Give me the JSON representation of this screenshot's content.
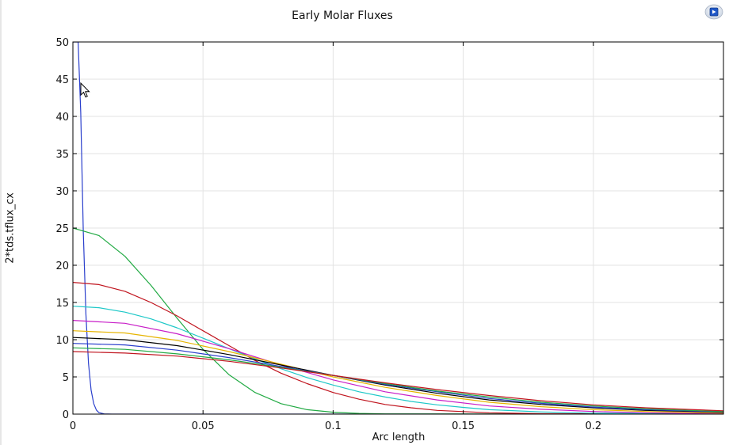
{
  "chart_data": {
    "type": "line",
    "title": "Early Molar Fluxes",
    "xlabel": "Arc length",
    "ylabel": "2*tds.tflux_cx",
    "xlim": [
      0,
      0.25
    ],
    "ylim": [
      0,
      50
    ],
    "xticks": [
      0,
      0.05,
      0.1,
      0.15,
      0.2
    ],
    "xtick_labels": [
      "0",
      "0.05",
      "0.1",
      "0.15",
      "0.2"
    ],
    "yticks": [
      0,
      5,
      10,
      15,
      20,
      25,
      30,
      35,
      40,
      45,
      50
    ],
    "ytick_labels": [
      "0",
      "5",
      "10",
      "15",
      "20",
      "25",
      "30",
      "35",
      "40",
      "45",
      "50"
    ],
    "grid": true,
    "legend": "none",
    "series": [
      {
        "color": "#2a3fcc",
        "x": [
          0,
          0.001,
          0.002,
          0.003,
          0.004,
          0.005,
          0.006,
          0.007,
          0.008,
          0.009,
          0.01,
          0.012,
          0.015,
          0.25
        ],
        "y": [
          50,
          50,
          50,
          40.5,
          24.6,
          13.5,
          6.8,
          3.2,
          1.4,
          0.55,
          0.2,
          0.03,
          0,
          0
        ]
      },
      {
        "color": "#22aa44",
        "x": [
          0,
          0.01,
          0.02,
          0.03,
          0.04,
          0.05,
          0.06,
          0.07,
          0.08,
          0.09,
          0.1,
          0.11,
          0.12,
          0.25
        ],
        "y": [
          25,
          24.0,
          21.2,
          17.3,
          12.9,
          8.7,
          5.3,
          2.9,
          1.4,
          0.6,
          0.25,
          0.1,
          0.03,
          0
        ]
      },
      {
        "color": "#c0141e",
        "x": [
          0,
          0.01,
          0.02,
          0.03,
          0.04,
          0.05,
          0.06,
          0.07,
          0.08,
          0.09,
          0.1,
          0.11,
          0.12,
          0.13,
          0.14,
          0.16,
          0.18,
          0.25
        ],
        "y": [
          17.7,
          17.4,
          16.5,
          15.0,
          13.2,
          11.2,
          9.2,
          7.2,
          5.5,
          4.1,
          2.9,
          2.0,
          1.3,
          0.85,
          0.5,
          0.18,
          0.05,
          0
        ]
      },
      {
        "color": "#1ec8c8",
        "x": [
          0,
          0.01,
          0.02,
          0.03,
          0.04,
          0.05,
          0.06,
          0.07,
          0.08,
          0.09,
          0.1,
          0.11,
          0.12,
          0.13,
          0.14,
          0.15,
          0.16,
          0.18,
          0.2,
          0.25
        ],
        "y": [
          14.5,
          14.3,
          13.7,
          12.8,
          11.6,
          10.2,
          8.8,
          7.4,
          6.1,
          4.9,
          3.9,
          3.0,
          2.3,
          1.7,
          1.25,
          0.9,
          0.6,
          0.3,
          0.13,
          0
        ]
      },
      {
        "color": "#c81ec8",
        "x": [
          0,
          0.02,
          0.04,
          0.05,
          0.06,
          0.08,
          0.1,
          0.12,
          0.14,
          0.16,
          0.18,
          0.2,
          0.22,
          0.25
        ],
        "y": [
          12.6,
          12.2,
          10.8,
          9.8,
          8.8,
          6.6,
          4.6,
          3.0,
          1.9,
          1.1,
          0.65,
          0.35,
          0.18,
          0.05
        ]
      },
      {
        "color": "#e6b400",
        "x": [
          0,
          0.02,
          0.04,
          0.06,
          0.08,
          0.1,
          0.12,
          0.14,
          0.16,
          0.18,
          0.2,
          0.22,
          0.25
        ],
        "y": [
          11.2,
          10.9,
          9.9,
          8.4,
          6.7,
          5.0,
          3.6,
          2.5,
          1.6,
          1.0,
          0.6,
          0.35,
          0.15
        ]
      },
      {
        "color": "#000000",
        "x": [
          0,
          0.02,
          0.04,
          0.06,
          0.08,
          0.1,
          0.12,
          0.14,
          0.16,
          0.18,
          0.2,
          0.22,
          0.25
        ],
        "y": [
          10.3,
          10.0,
          9.2,
          8.0,
          6.6,
          5.2,
          3.9,
          2.8,
          1.9,
          1.3,
          0.85,
          0.5,
          0.25
        ]
      },
      {
        "color": "#2a3fcc",
        "x": [
          0,
          0.02,
          0.04,
          0.06,
          0.08,
          0.1,
          0.12,
          0.14,
          0.16,
          0.18,
          0.2,
          0.22,
          0.25
        ],
        "y": [
          9.5,
          9.3,
          8.6,
          7.6,
          6.4,
          5.2,
          4.0,
          3.0,
          2.1,
          1.45,
          0.95,
          0.6,
          0.3
        ]
      },
      {
        "color": "#22aa44",
        "x": [
          0,
          0.02,
          0.04,
          0.06,
          0.08,
          0.1,
          0.12,
          0.14,
          0.16,
          0.18,
          0.2,
          0.22,
          0.25
        ],
        "y": [
          8.9,
          8.7,
          8.1,
          7.3,
          6.3,
          5.2,
          4.1,
          3.1,
          2.3,
          1.6,
          1.1,
          0.7,
          0.35
        ]
      },
      {
        "color": "#c0141e",
        "x": [
          0,
          0.02,
          0.04,
          0.06,
          0.08,
          0.1,
          0.12,
          0.14,
          0.16,
          0.18,
          0.2,
          0.22,
          0.25
        ],
        "y": [
          8.4,
          8.2,
          7.8,
          7.1,
          6.2,
          5.2,
          4.2,
          3.3,
          2.5,
          1.8,
          1.25,
          0.85,
          0.45
        ]
      }
    ]
  },
  "toolbar": {
    "zoom_icon": "zoom-extents-icon"
  },
  "cursor": {
    "icon": "mouse-pointer-icon"
  }
}
